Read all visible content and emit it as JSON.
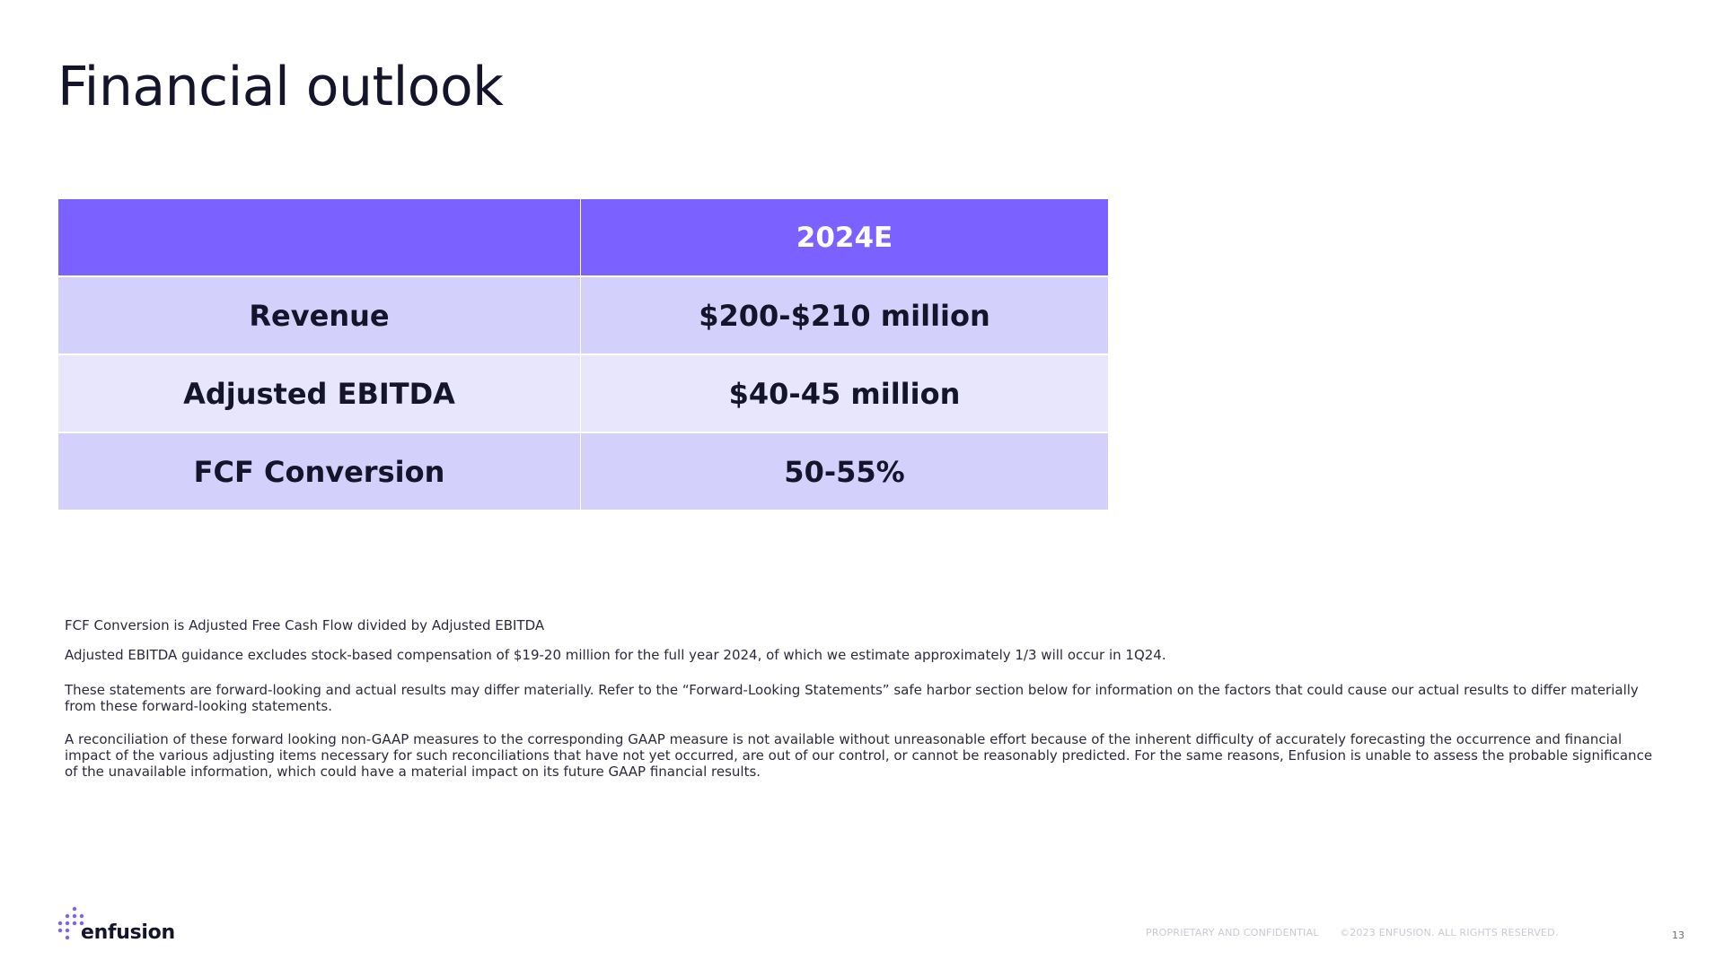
{
  "slide": {
    "title": "Financial outlook"
  },
  "table": {
    "header": {
      "col1": "",
      "col2": "2024E"
    },
    "rows": [
      {
        "label": "Revenue",
        "value": "$200-$210 million"
      },
      {
        "label": "Adjusted EBITDA",
        "value": "$40-45 million"
      },
      {
        "label": "FCF Conversion",
        "value": "50-55%"
      }
    ]
  },
  "notes": {
    "n1": "FCF Conversion is Adjusted Free Cash Flow divided by Adjusted EBITDA",
    "n2": "Adjusted EBITDA guidance excludes stock-based compensation of  $19-20 million for the full year 2024, of which we estimate approximately 1/3 will occur in 1Q24.",
    "n3": "These statements are forward-looking and actual results may differ materially. Refer to the “Forward-Looking Statements” safe harbor section below for information on the factors that could cause our actual results to differ materially from these forward-looking statements.",
    "n4": "A reconciliation of these forward looking non-GAAP measures to the corresponding GAAP measure is not available without unreasonable effort because of the inherent difficulty of accurately forecasting the occurrence and financial impact of the various adjusting items necessary for such reconciliations that have not yet occurred, are out of our control, or cannot be reasonably predicted. For the same reasons, Enfusion is unable to assess the probable significance of the unavailable information, which could have a material impact on its future GAAP financial results."
  },
  "footer": {
    "logo_text": "enfusion",
    "confidential": "PROPRIETARY AND CONFIDENTIAL",
    "copyright": "©2023 ENFUSION. ALL RIGHTS RESERVED.",
    "page_number": "13"
  },
  "colors": {
    "header_bg": "#7b61ff",
    "row_dark": "#d3d0fb",
    "row_light": "#e8e6fd",
    "logo_dot": "#7b61ff"
  }
}
